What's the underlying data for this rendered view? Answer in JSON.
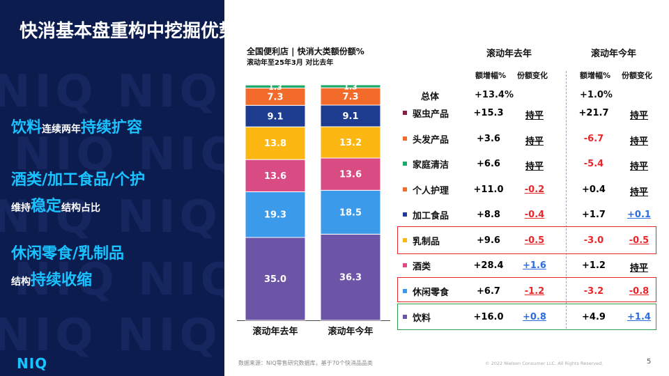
{
  "page": {
    "title": "快消基本盘重构中挖掘优势品类",
    "left_points": [
      {
        "a": "饮料",
        "b": "连续两年",
        "c": "持续扩容"
      },
      {
        "a": "酒类/加工食品/个护",
        "b": "维持",
        "c": "稳定",
        "d": "结构占比"
      },
      {
        "a": "休闲零食/乳制品",
        "b": "结构",
        "c": "持续收缩"
      }
    ],
    "logo": "NIQ",
    "footer_source": "数据来源：NIQ零售研究数据库，基于70个快消品品类",
    "footer_copyright": "© 2022 Nielsen Consumer LLC. All Rights Reserved.",
    "page_number": "5"
  },
  "colors": {
    "panel": "#0c1c4f",
    "accent": "#19c3ff",
    "red_box": "#e8262a",
    "green_box": "#2e9e48"
  },
  "chart_data": {
    "type": "bar",
    "stacked": true,
    "percent": true,
    "title": "全国便利店 | 快消大类额份额%",
    "subtitle": "滚动年至25年3月 对比去年",
    "categories": [
      "滚动年去年",
      "滚动年今年"
    ],
    "series": [
      {
        "name": "饮料",
        "color": "#6c54a6",
        "values": [
          35.0,
          36.3
        ]
      },
      {
        "name": "休闲零食",
        "color": "#3b9bea",
        "values": [
          19.3,
          18.5
        ]
      },
      {
        "name": "酒类",
        "color": "#d94b83",
        "values": [
          13.6,
          13.6
        ]
      },
      {
        "name": "乳制品",
        "color": "#fdb713",
        "values": [
          13.8,
          13.2
        ]
      },
      {
        "name": "加工食品",
        "color": "#1d3b8f",
        "values": [
          9.1,
          9.1
        ]
      },
      {
        "name": "个人护理",
        "color": "#f26b2b",
        "values": [
          7.3,
          7.3
        ]
      },
      {
        "name": "家庭清洁",
        "color": "#1ea96a",
        "values": [
          1.3,
          1.3
        ]
      },
      {
        "name": "头发产品",
        "color": "#f26b2b",
        "values": [
          0.3,
          0.3
        ]
      },
      {
        "name": "驱虫产品",
        "color": "#8a1c3c",
        "values": [
          0.3,
          0.2
        ]
      }
    ]
  },
  "table": {
    "period_headers": [
      "滚动年去年",
      "滚动年今年"
    ],
    "sub_headers": [
      "额增幅%",
      "份额变化",
      "额增幅%",
      "份额变化"
    ],
    "total": {
      "label": "总体",
      "last_growth": "+13.4%",
      "this_growth": "+1.0%"
    },
    "rows": [
      {
        "label": "驱虫产品",
        "color": "#8a1c3c",
        "last_growth": "+15.3",
        "last_share": "持平",
        "this_growth": "+21.7",
        "this_share": "持平"
      },
      {
        "label": "头发产品",
        "color": "#f26b2b",
        "last_growth": "+3.6",
        "last_share": "持平",
        "this_growth": "-6.7",
        "this_share": "持平"
      },
      {
        "label": "家庭清洁",
        "color": "#1ea96a",
        "last_growth": "+6.6",
        "last_share": "持平",
        "this_growth": "-5.4",
        "this_share": "持平"
      },
      {
        "label": "个人护理",
        "color": "#f26b2b",
        "last_growth": "+11.0",
        "last_share": "-0.2",
        "this_growth": "+0.4",
        "this_share": "持平"
      },
      {
        "label": "加工食品",
        "color": "#1d3b8f",
        "last_growth": "+8.8",
        "last_share": "-0.4",
        "this_growth": "+1.7",
        "this_share": "+0.1"
      },
      {
        "label": "乳制品",
        "color": "#fdb713",
        "last_growth": "+9.6",
        "last_share": "-0.5",
        "this_growth": "-3.0",
        "this_share": "-0.5"
      },
      {
        "label": "酒类",
        "color": "#d94b83",
        "last_growth": "+28.4",
        "last_share": "+1.6",
        "this_growth": "+1.2",
        "this_share": "持平"
      },
      {
        "label": "休闲零食",
        "color": "#3b9bea",
        "last_growth": "+6.7",
        "last_share": "-1.2",
        "this_growth": "-3.2",
        "this_share": "-0.8"
      },
      {
        "label": "饮料",
        "color": "#6c54a6",
        "last_growth": "+16.0",
        "last_share": "+0.8",
        "this_growth": "+4.9",
        "this_share": "+1.4"
      }
    ]
  }
}
